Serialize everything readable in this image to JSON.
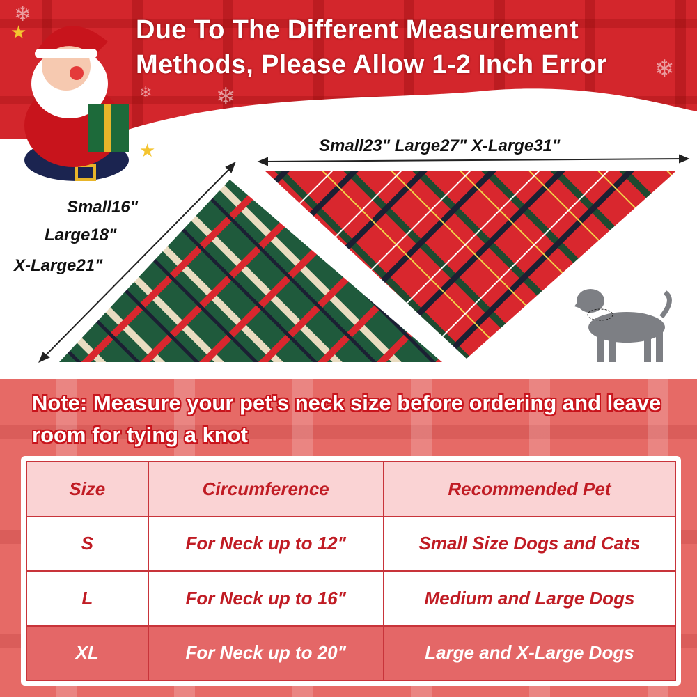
{
  "headline": "Due To The Different Measurement Methods, Please Allow 1-2 Inch Error",
  "top_dimensions": "Small23\"  Large27\"  X-Large31\"",
  "side_dimensions": [
    "Small16\"",
    "Large18\"",
    "X-Large21\""
  ],
  "note": "Note: Measure your pet's neck size before ordering and leave room for tying a knot",
  "table": {
    "headers": [
      "Size",
      "Circumference",
      "Recommended Pet"
    ],
    "rows": [
      [
        "S",
        "For Neck up to 12\"",
        "Small Size Dogs and Cats"
      ],
      [
        "L",
        "For Neck up to 16\"",
        "Medium and Large Dogs"
      ],
      [
        "XL",
        "For Neck up to 20\"",
        "Large and X-Large Dogs"
      ]
    ]
  },
  "colors": {
    "banner_red": "#d3262c",
    "table_text": "#c01c24",
    "plaid_green": "#1f5a3c",
    "plaid_red": "#d9272e"
  },
  "icons": [
    "santa-illustration",
    "dog-silhouette-icon",
    "star-icon",
    "snowflake-icon"
  ]
}
